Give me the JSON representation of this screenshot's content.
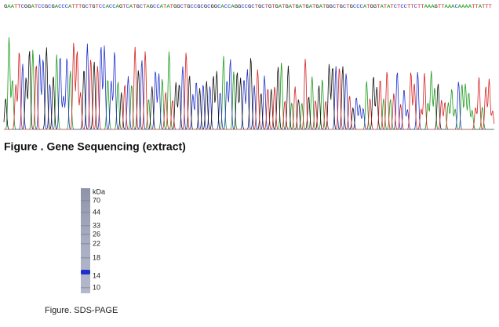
{
  "sequence": "GAATTCGGATCCGCGACCCATTTGCTGTCCACCAGTCATGCTAGCCATATGGCTGCCGCGCGGCACCAGGCCGCTGCTGTGATGATGATGATGATGGCTGCTGCCCATGGTATATCTCCTTCTTAAAGTTAAACAAAATTATTT",
  "sequencing_caption": "Figure . Gene Sequencing (extract)",
  "gel": {
    "unit": "kDa",
    "markers": [
      70,
      44,
      33,
      26,
      22,
      18,
      14,
      10
    ]
  },
  "gel_caption": "Figure. SDS-PAGE"
}
